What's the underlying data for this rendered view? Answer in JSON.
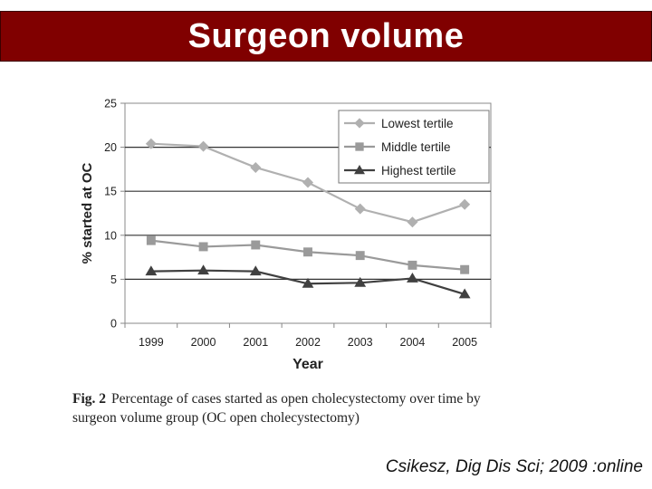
{
  "slide": {
    "title": "Surgeon volume",
    "caption_label": "Fig. 2",
    "caption_text": "Percentage of cases started as open cholecystectomy over time by surgeon volume group (OC open cholecystectomy)",
    "citation": "Csikesz, Dig Dis Sci; 2009 :online"
  },
  "chart_data": {
    "type": "line",
    "title": "",
    "xlabel": "Year",
    "ylabel": "% started at OC",
    "ylim": [
      0,
      25
    ],
    "yticks": [
      0,
      5,
      10,
      15,
      20,
      25
    ],
    "categories": [
      "1999",
      "2000",
      "2001",
      "2002",
      "2003",
      "2004",
      "2005"
    ],
    "grid": "horizontal",
    "legend_position": "top-right",
    "series": [
      {
        "name": "Lowest tertile",
        "marker": "diamond",
        "color": "#b0b0b0",
        "values": [
          20.4,
          20.1,
          17.7,
          16.0,
          13.0,
          11.5,
          13.5
        ]
      },
      {
        "name": "Middle tertile",
        "marker": "square",
        "color": "#9a9a9a",
        "values": [
          9.4,
          8.7,
          8.9,
          8.1,
          7.7,
          6.6,
          6.1
        ]
      },
      {
        "name": "Highest tertile",
        "marker": "triangle",
        "color": "#404040",
        "values": [
          5.9,
          6.0,
          5.9,
          4.5,
          4.6,
          5.1,
          3.3
        ]
      }
    ]
  }
}
